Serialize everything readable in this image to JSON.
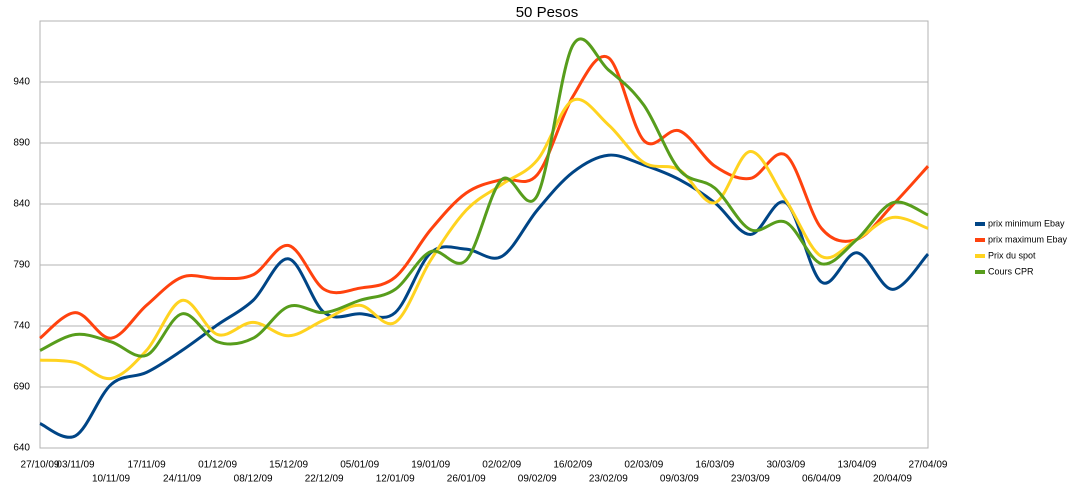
{
  "chart_data": {
    "type": "line",
    "title": "50 Pesos",
    "categories": [
      "27/10/09",
      "03/11/09",
      "10/11/09",
      "17/11/09",
      "24/11/09",
      "01/12/09",
      "08/12/09",
      "15/12/09",
      "22/12/09",
      "05/01/09",
      "12/01/09",
      "19/01/09",
      "26/01/09",
      "02/02/09",
      "09/02/09",
      "16/02/09",
      "23/02/09",
      "02/03/09",
      "09/03/09",
      "16/03/09",
      "23/03/09",
      "30/03/09",
      "06/04/09",
      "13/04/09",
      "20/04/09",
      "27/04/09"
    ],
    "series": [
      {
        "name": "prix minimum Ebay",
        "color": "#004586",
        "values": [
          660,
          650,
          692,
          702,
          720,
          741,
          761,
          795,
          751,
          750,
          751,
          800,
          803,
          797,
          835,
          866,
          880,
          872,
          860,
          841,
          815,
          841,
          776,
          800,
          770,
          799
        ]
      },
      {
        "name": "prix maximum Ebay",
        "color": "#ff420e",
        "values": [
          730,
          751,
          730,
          757,
          780,
          779,
          782,
          806,
          770,
          771,
          780,
          819,
          849,
          860,
          864,
          928,
          960,
          892,
          900,
          871,
          861,
          880,
          820,
          811,
          839,
          871
        ]
      },
      {
        "name": "Prix du spot",
        "color": "#ffd320",
        "values": [
          712,
          710,
          697,
          720,
          761,
          733,
          743,
          732,
          745,
          757,
          743,
          794,
          835,
          856,
          876,
          925,
          905,
          874,
          868,
          841,
          883,
          843,
          797,
          811,
          829,
          820
        ]
      },
      {
        "name": "Cours CPR",
        "color": "#579d1c",
        "values": [
          720,
          733,
          727,
          716,
          750,
          727,
          730,
          756,
          751,
          761,
          770,
          801,
          794,
          860,
          847,
          970,
          950,
          921,
          868,
          853,
          819,
          825,
          791,
          811,
          841,
          831
        ]
      }
    ],
    "ylim": [
      640,
      990
    ],
    "yticks": [
      640,
      690,
      740,
      790,
      840,
      890,
      940
    ],
    "grid": true,
    "legend": "right"
  }
}
